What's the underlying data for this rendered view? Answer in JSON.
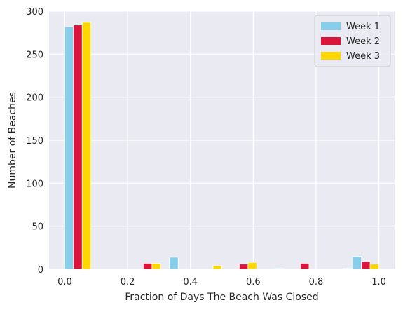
{
  "chart_data": {
    "type": "bar",
    "title": "",
    "xlabel": "Fraction of Days The Beach Was Closed",
    "ylabel": "Number of Beaches",
    "xlim": [
      -0.05,
      1.05
    ],
    "ylim": [
      0,
      300
    ],
    "xticks": [
      0.0,
      0.2,
      0.4,
      0.6,
      0.8,
      1.0
    ],
    "xtick_labels": [
      "0.0",
      "0.2",
      "0.4",
      "0.6",
      "0.8",
      "1.0"
    ],
    "yticks": [
      0,
      50,
      100,
      150,
      200,
      250,
      300
    ],
    "ytick_labels": [
      "0",
      "50",
      "100",
      "150",
      "200",
      "250",
      "300"
    ],
    "grid": true,
    "legend_position": "top-right",
    "bin_width": 0.0277,
    "series": [
      {
        "name": "Week 1",
        "color": "#87ceeb",
        "x": [
          0.0,
          0.3333,
          0.6667,
          0.8889,
          0.9167
        ],
        "values": [
          282,
          14,
          1,
          1,
          15
        ]
      },
      {
        "name": "Week 2",
        "color": "#dc143c",
        "x": [
          0.0278,
          0.25,
          0.5556,
          0.75,
          0.9444
        ],
        "values": [
          284,
          7,
          6,
          7,
          9
        ]
      },
      {
        "name": "Week 3",
        "color": "#ffd700",
        "x": [
          0.0556,
          0.2778,
          0.4722,
          0.5833,
          0.9722
        ],
        "values": [
          287,
          7,
          4,
          8,
          6
        ]
      }
    ]
  }
}
